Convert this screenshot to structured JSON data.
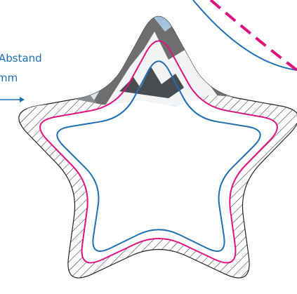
{
  "annotation": {
    "line1": "Abstand",
    "line2": "mm"
  }
}
